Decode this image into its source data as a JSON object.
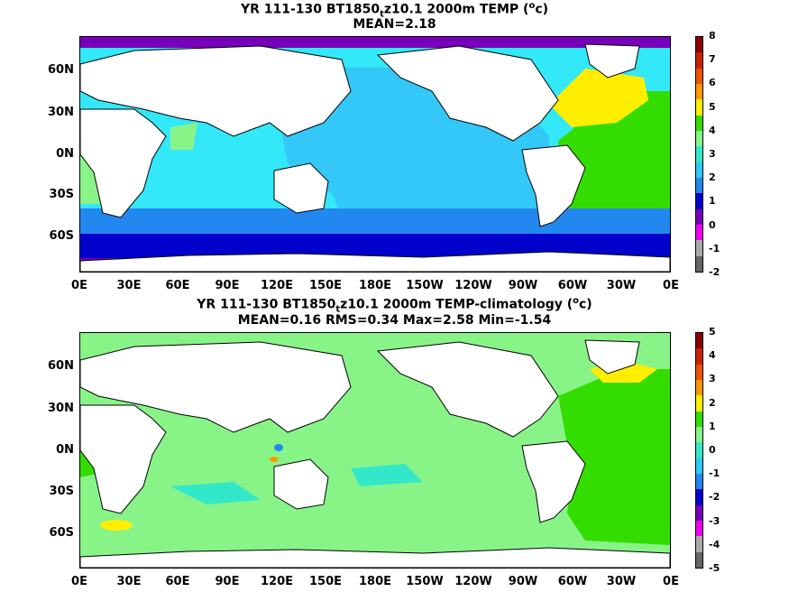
{
  "panel1": {
    "title_pre": "YR 111-130 BT1850",
    "title_sub": "t",
    "title_post": "z10.1 2000m TEMP (",
    "title_sup": "o",
    "title_end": "c)",
    "stats": "MEAN=2.18",
    "colorbar": {
      "labels": [
        "8",
        "7",
        "6",
        "5",
        "4",
        "3",
        "2",
        "1",
        "0",
        "-1",
        "-2"
      ],
      "colors": [
        "#8b0000",
        "#cc2200",
        "#ee5500",
        "#ff9900",
        "#ffee00",
        "#33dd00",
        "#88f488",
        "#33e8c8",
        "#33c8f8",
        "#2288f0",
        "#0000cc",
        "#7700bb",
        "#ee00ee",
        "#aaaaaa",
        "#666666"
      ]
    }
  },
  "panel2": {
    "title_pre": "YR 111-130 BT1850",
    "title_sub": "t",
    "title_post": "z10.1 2000m TEMP-climatology (",
    "title_sup": "o",
    "title_end": "c)",
    "stats": "MEAN=0.16   RMS=0.34   Max=2.58   Min=-1.54",
    "colorbar": {
      "labels": [
        "5",
        "4",
        "3",
        "2",
        "1",
        "0",
        "-1",
        "-2",
        "-3",
        "-4",
        "-5"
      ],
      "colors": [
        "#8b0000",
        "#cc2200",
        "#ee5500",
        "#ff9900",
        "#ffee00",
        "#33dd00",
        "#88f488",
        "#33e8c8",
        "#33c8f8",
        "#2288f0",
        "#0000cc",
        "#7700bb",
        "#ee00ee",
        "#aaaaaa",
        "#666666"
      ]
    }
  },
  "lat_labels": [
    "60N",
    "30N",
    "0N",
    "30S",
    "60S"
  ],
  "lon_labels": [
    "0E",
    "30E",
    "60E",
    "90E",
    "120E",
    "150E",
    "180E",
    "150W",
    "120W",
    "90W",
    "60W",
    "30W",
    "0E"
  ]
}
